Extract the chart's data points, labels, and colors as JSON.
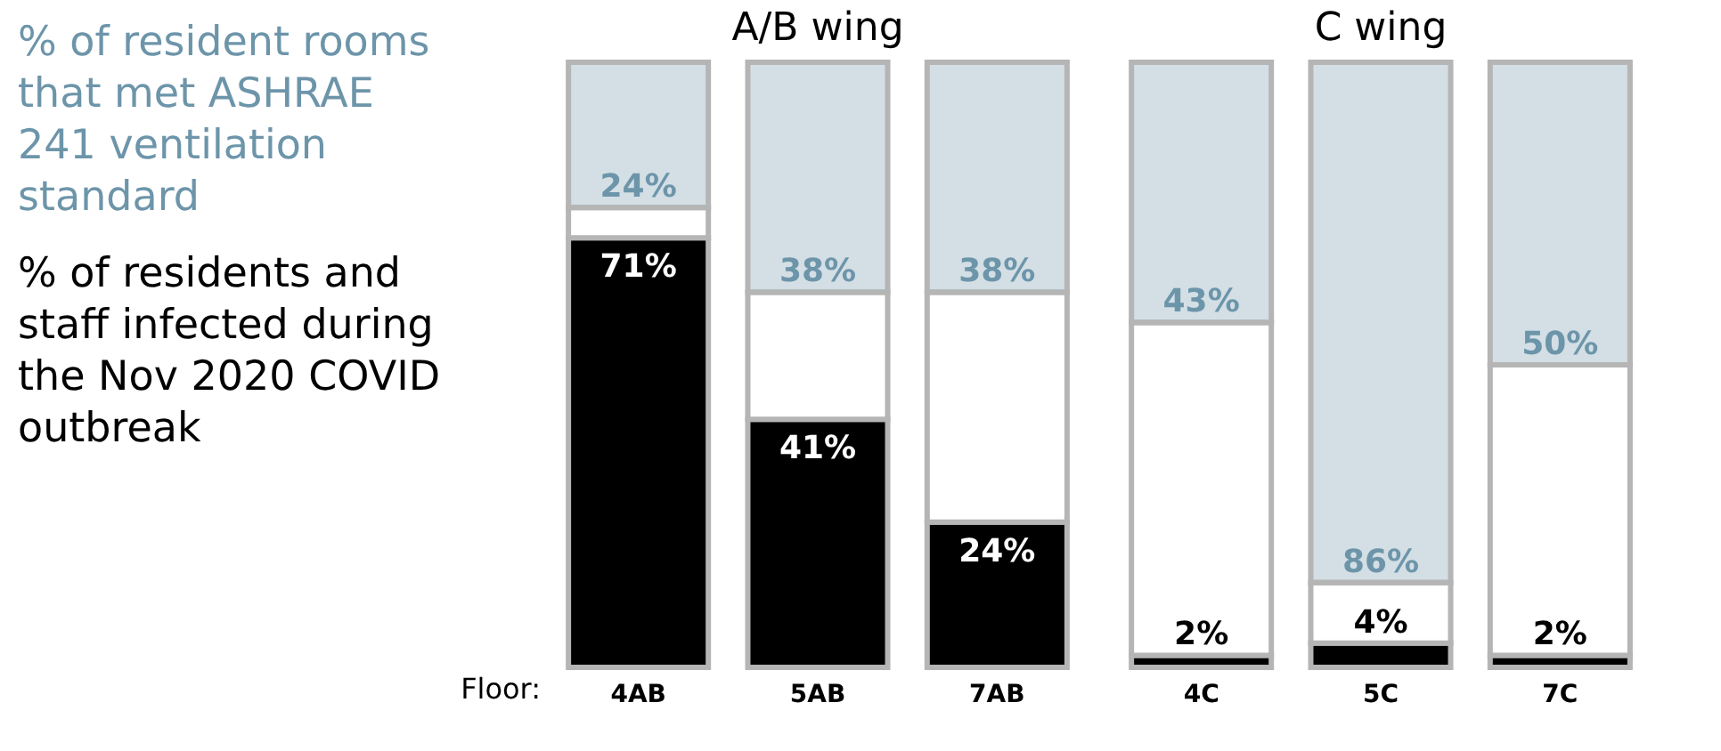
{
  "chart_data": [
    {
      "type": "bar",
      "title": "A/B wing",
      "xlabel": "Floor:",
      "categories": [
        "4AB",
        "5AB",
        "7AB"
      ],
      "ylim": [
        0,
        100
      ],
      "tick_labels": "x",
      "stacked": true,
      "series": [
        {
          "name": "% of residents and staff infected during the Nov 2020 COVID outbreak",
          "color": "#000000",
          "values": [
            71,
            41,
            24
          ],
          "value_labels": [
            "71%",
            "41%",
            "24%"
          ]
        },
        {
          "color": "#ffffff",
          "values": [
            5,
            21,
            38
          ]
        },
        {
          "name": "% of resident rooms that met ASHRAE 241 ventilation standard",
          "color": "#6d95aa",
          "values": [
            24,
            38,
            38
          ],
          "value_labels": [
            "24%",
            "38%",
            "38%"
          ]
        }
      ]
    },
    {
      "type": "bar",
      "title": "C wing",
      "categories": [
        "4C",
        "5C",
        "7C"
      ],
      "ylim": [
        0,
        100
      ],
      "tick_labels": "x",
      "stacked": true,
      "series": [
        {
          "color": "#000000",
          "values": [
            2,
            4,
            2
          ],
          "value_labels": [
            "2%",
            "4%",
            "2%"
          ]
        },
        {
          "color": "#ffffff",
          "values": [
            55,
            10,
            48
          ]
        },
        {
          "color": "#6d95aa",
          "values": [
            43,
            86,
            50
          ],
          "value_labels": [
            "43%",
            "86%",
            "50%"
          ]
        }
      ]
    }
  ]
}
